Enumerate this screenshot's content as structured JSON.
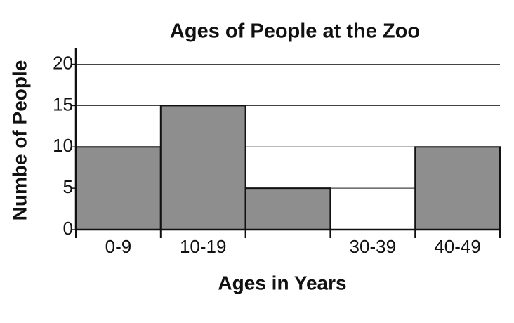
{
  "chart_data": {
    "type": "bar",
    "title": "Ages of People at the Zoo",
    "x_label": "Ages in Years",
    "y_label": "Numbe of People",
    "categories": [
      "0-9",
      "10-19",
      null,
      "30-39",
      "40-49"
    ],
    "values": [
      10,
      15,
      5,
      0,
      10
    ],
    "color": "#8e8e8e",
    "ylim": [
      0,
      22
    ],
    "yticks": [
      0,
      5,
      10,
      15,
      20
    ],
    "grid": true
  }
}
